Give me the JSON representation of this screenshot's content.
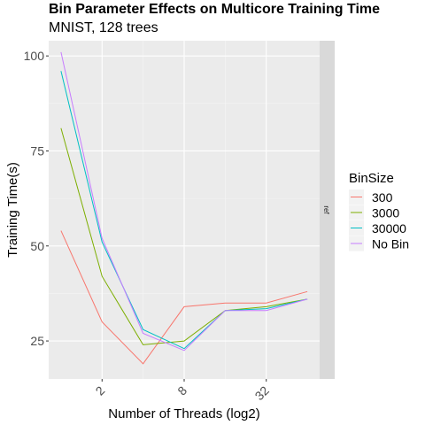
{
  "chart_data": {
    "type": "line",
    "title": "Bin Parameter Effects on Multicore Training Time",
    "subtitle": "MNIST, 128 trees",
    "xlabel": "Number of Threads (log2)",
    "ylabel": "Training Time(s)",
    "facet_label": "ref",
    "x": [
      1,
      2,
      4,
      8,
      16,
      32,
      64
    ],
    "x_scale": "log2",
    "x_ticks": [
      2,
      8,
      32
    ],
    "x_tick_labels": [
      "2",
      "8",
      "32"
    ],
    "y_ticks": [
      25,
      50,
      75,
      100
    ],
    "y_tick_labels": [
      "25",
      "50",
      "75",
      "100"
    ],
    "ylim": [
      15,
      104
    ],
    "grid": true,
    "legend": {
      "title": "BinSize",
      "position": "right"
    },
    "series": [
      {
        "name": "300",
        "color": "#F8766D",
        "values": [
          54,
          30,
          19,
          34,
          35,
          35,
          38
        ]
      },
      {
        "name": "3000",
        "color": "#7CAE00",
        "values": [
          81,
          42,
          24,
          25,
          33,
          34,
          36
        ]
      },
      {
        "name": "30000",
        "color": "#00BFC4",
        "values": [
          96,
          51,
          28,
          23,
          33,
          33.5,
          36
        ]
      },
      {
        "name": "No Bin",
        "color": "#C77CFF",
        "values": [
          101,
          52,
          27,
          22.5,
          33,
          33,
          36
        ]
      }
    ]
  }
}
